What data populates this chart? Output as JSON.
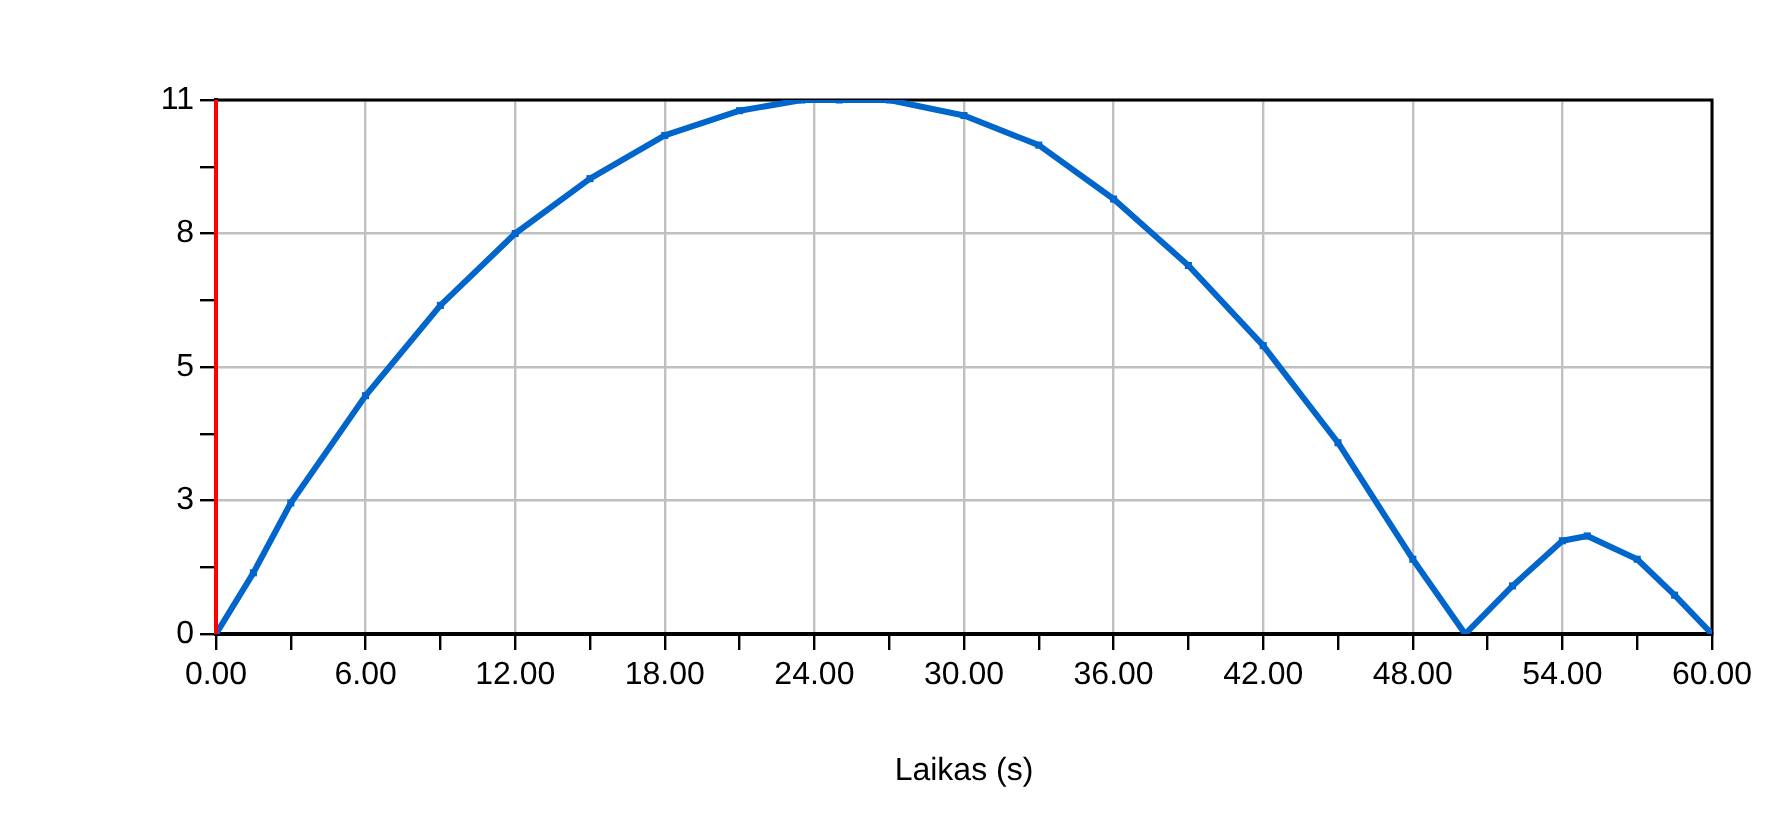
{
  "chart_data": {
    "type": "line",
    "xlabel": "Laikas (s)",
    "x": [
      0,
      1.5,
      3,
      6,
      9,
      12,
      15,
      18,
      21,
      23.5,
      25,
      27,
      30,
      33,
      36,
      39,
      42,
      45,
      48,
      50.1,
      52,
      54,
      55,
      57,
      58.5,
      60
    ],
    "series": [
      {
        "color": "#0066cc",
        "values": [
          0,
          1.26,
          2.7,
          4.91,
          6.77,
          8.25,
          9.38,
          10.27,
          10.78,
          11,
          11,
          11,
          10.68,
          10.07,
          8.96,
          7.59,
          5.94,
          3.94,
          1.54,
          0,
          0.99,
          1.92,
          2.02,
          1.54,
          0.8,
          0
        ]
      }
    ],
    "xlim": [
      0,
      60
    ],
    "xticks": [
      {
        "value": 0,
        "label": "0.00"
      },
      {
        "value": 3,
        "label": null
      },
      {
        "value": 6,
        "label": "6.00"
      },
      {
        "value": 9,
        "label": null
      },
      {
        "value": 12,
        "label": "12.00"
      },
      {
        "value": 15,
        "label": null
      },
      {
        "value": 18,
        "label": "18.00"
      },
      {
        "value": 21,
        "label": null
      },
      {
        "value": 24,
        "label": "24.00"
      },
      {
        "value": 27,
        "label": null
      },
      {
        "value": 30,
        "label": "30.00"
      },
      {
        "value": 33,
        "label": null
      },
      {
        "value": 36,
        "label": "36.00"
      },
      {
        "value": 39,
        "label": null
      },
      {
        "value": 42,
        "label": "42.00"
      },
      {
        "value": 45,
        "label": null
      },
      {
        "value": 48,
        "label": "48.00"
      },
      {
        "value": 51,
        "label": null
      },
      {
        "value": 54,
        "label": "54.00"
      },
      {
        "value": 57,
        "label": null
      },
      {
        "value": 60,
        "label": "60.00"
      }
    ],
    "ylim": [
      0,
      11
    ],
    "yticks": [
      {
        "value": 0,
        "label": "0"
      },
      {
        "value": 1.375,
        "label": null
      },
      {
        "value": 2.75,
        "label": "3"
      },
      {
        "value": 4.125,
        "label": null
      },
      {
        "value": 5.5,
        "label": "5"
      },
      {
        "value": 6.875,
        "label": null
      },
      {
        "value": 8.25,
        "label": "8"
      },
      {
        "value": 9.625,
        "label": null
      },
      {
        "value": 11,
        "label": "11"
      }
    ],
    "ref_lines": [
      {
        "axis": "x",
        "value": 0,
        "color": "#ff0000"
      }
    ],
    "grid": true,
    "legend": false,
    "marker": "square",
    "line_style": "solid"
  }
}
